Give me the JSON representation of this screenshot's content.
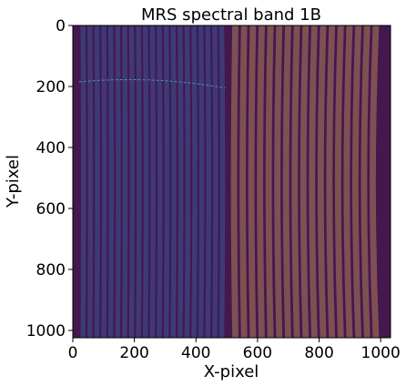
{
  "chart_data": {
    "type": "heatmap",
    "title": "MRS spectral band 1B",
    "xlabel": "X-pixel",
    "ylabel": "Y-pixel",
    "xlim": [
      0,
      1032
    ],
    "ylim": [
      1024,
      0
    ],
    "x_ticks": [
      0,
      200,
      400,
      600,
      800,
      1000
    ],
    "y_ticks": [
      0,
      200,
      400,
      600,
      800,
      1000
    ],
    "colors": {
      "background": "#44184f",
      "left_channel": "#3d3a77",
      "right_channel": "#7e5052",
      "trace_line": "#4f8fa2"
    },
    "left_channel": {
      "x_range": [
        22,
        495
      ],
      "slice_count": 21
    },
    "right_channel": {
      "x_range": [
        515,
        1000
      ],
      "slice_count": 17
    },
    "trace": {
      "y_start": 185,
      "y_end": 205,
      "x_range": [
        20,
        495
      ]
    }
  }
}
